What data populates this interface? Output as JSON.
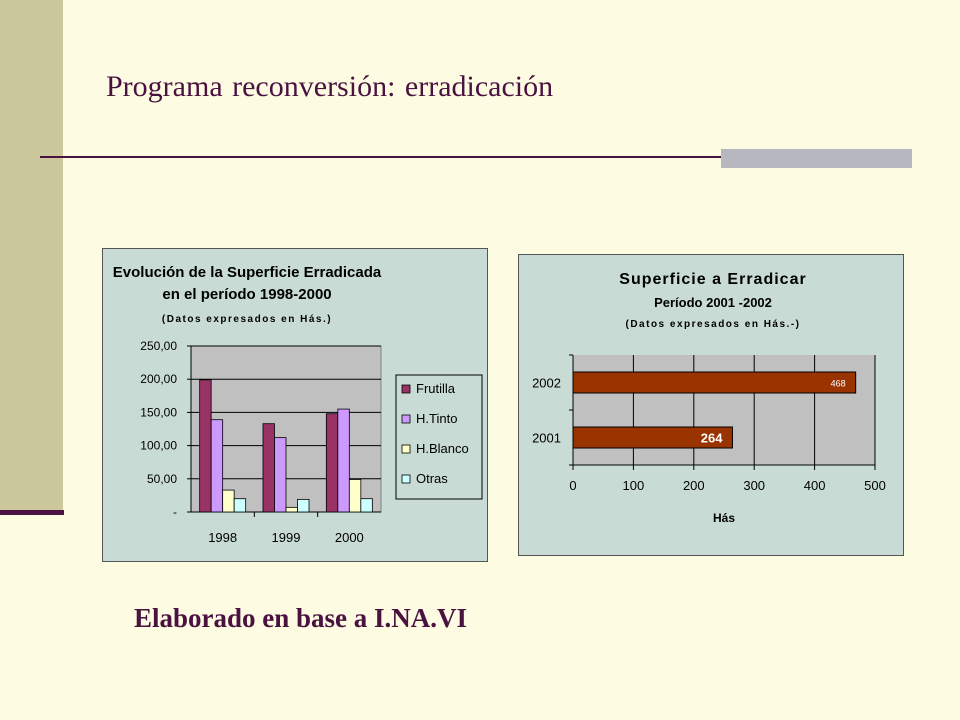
{
  "slide": {
    "title": "Programa reconversión:  erradicación",
    "footer": "Elaborado en base a I.NA.VI"
  },
  "colors": {
    "background": "#fdfbe1",
    "sidebar": "#cbc99b",
    "title_text": "#4a1240",
    "accent_bar": "#b7b7bf",
    "chart_background": "#c8dcd5",
    "plot_area": "#c0c0c0"
  },
  "chart_data": [
    {
      "type": "bar",
      "title": "Evolución de la Superficie Erradicada",
      "title_line2": "en el período 1998-2000",
      "subtitle": "(Datos expresados en Hás.)",
      "categories": [
        "1998",
        "1999",
        "2000"
      ],
      "series": [
        {
          "name": "Frutilla",
          "color": "#993366",
          "values": [
            199,
            133,
            148
          ]
        },
        {
          "name": "H.Tinto",
          "color": "#cc99ff",
          "values": [
            139,
            112,
            155
          ]
        },
        {
          "name": "H.Blanco",
          "color": "#ffffcc",
          "values": [
            33,
            7,
            49
          ]
        },
        {
          "name": "Otras",
          "color": "#ccffff",
          "values": [
            20,
            19,
            20
          ]
        }
      ],
      "ylim": [
        0,
        250
      ],
      "yticks": [
        0,
        50,
        100,
        150,
        200,
        250
      ],
      "ytick_labels": [
        "-",
        "50,00",
        "100,00",
        "150,00",
        "200,00",
        "250,00"
      ],
      "legend": "right",
      "grid": true
    },
    {
      "type": "bar",
      "orientation": "horizontal",
      "title": "Superficie a Erradicar",
      "title_line2": "Período 2001 -2002",
      "subtitle": "(Datos expresados en Hás.-)",
      "categories": [
        "2002",
        "2001"
      ],
      "values": [
        468,
        264
      ],
      "data_labels": [
        "468",
        "264"
      ],
      "color": "#993300",
      "xlabel": "Hás",
      "xlim": [
        0,
        500
      ],
      "xticks": [
        0,
        100,
        200,
        300,
        400,
        500
      ],
      "grid": true
    }
  ]
}
